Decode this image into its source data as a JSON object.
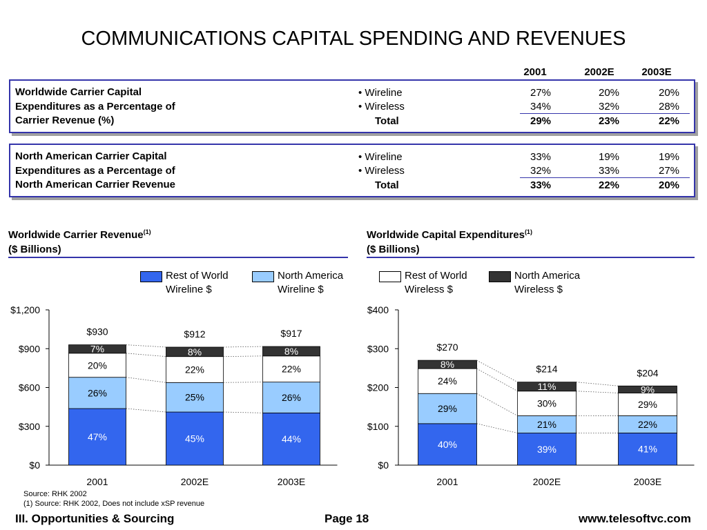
{
  "title": "COMMUNICATIONS CAPITAL SPENDING AND REVENUES",
  "years": [
    "2001",
    "2002E",
    "2003E"
  ],
  "panels": [
    {
      "label_lines": [
        "Worldwide Carrier Capital",
        "Expenditures as a Percentage of",
        "Carrier Revenue (%)"
      ],
      "rows": [
        {
          "label": "• Wireline",
          "values": [
            "27%",
            "20%",
            "20%"
          ]
        },
        {
          "label": "• Wireless",
          "values": [
            "34%",
            "32%",
            "28%"
          ]
        },
        {
          "label": "Total",
          "values": [
            "29%",
            "23%",
            "22%"
          ]
        }
      ]
    },
    {
      "label_lines": [
        "North American Carrier Capital",
        "Expenditures as a Percentage of",
        "North American Carrier Revenue"
      ],
      "rows": [
        {
          "label": "• Wireline",
          "values": [
            "33%",
            "19%",
            "19%"
          ]
        },
        {
          "label": "• Wireless",
          "values": [
            "32%",
            "33%",
            "27%"
          ]
        },
        {
          "label": "Total",
          "values": [
            "33%",
            "22%",
            "20%"
          ]
        }
      ]
    }
  ],
  "colors": {
    "rest_wireline": "#3366ee",
    "na_wireline": "#99ccff",
    "rest_wireless": "#ffffff",
    "na_wireless": "#333333",
    "panel_border": "#3333aa"
  },
  "legend": {
    "left": [
      {
        "line1": "Rest of World",
        "line2": "Wireline $",
        "color": "#3366ee"
      },
      {
        "line1": "North America",
        "line2": "Wireline $",
        "color": "#99ccff"
      }
    ],
    "right": [
      {
        "line1": "Rest of World",
        "line2": "Wireless $",
        "color": "#ffffff"
      },
      {
        "line1": "North America",
        "line2": "Wireless $",
        "color": "#333333"
      }
    ]
  },
  "chart_data": [
    {
      "type": "bar",
      "stacked": true,
      "title": "Worldwide Carrier Revenue",
      "title_sup": "(1)",
      "subtitle": "($ Billions)",
      "categories": [
        "2001",
        "2002E",
        "2003E"
      ],
      "totals": [
        930,
        912,
        917
      ],
      "total_labels": [
        "$930",
        "$912",
        "$917"
      ],
      "series": [
        {
          "name": "Rest of World Wireline $",
          "shares": [
            47,
            45,
            44
          ],
          "labels": [
            "47%",
            "45%",
            "44%"
          ],
          "color": "#3366ee",
          "text_color": "#ffffff"
        },
        {
          "name": "North America Wireline $",
          "shares": [
            26,
            25,
            26
          ],
          "labels": [
            "26%",
            "25%",
            "26%"
          ],
          "color": "#99ccff",
          "text_color": "#000000"
        },
        {
          "name": "Rest of World Wireless $",
          "shares": [
            20,
            22,
            22
          ],
          "labels": [
            "20%",
            "22%",
            "22%"
          ],
          "color": "#ffffff",
          "text_color": "#000000"
        },
        {
          "name": "North America Wireless $",
          "shares": [
            7,
            8,
            8
          ],
          "labels": [
            "7%",
            "8%",
            "8%"
          ],
          "color": "#333333",
          "text_color": "#ffffff"
        }
      ],
      "ylim": [
        0,
        1200
      ],
      "yticks": [
        0,
        300,
        600,
        900,
        1200
      ],
      "ytick_labels": [
        "$0",
        "$300",
        "$600",
        "$900",
        "$1,200"
      ]
    },
    {
      "type": "bar",
      "stacked": true,
      "title": "Worldwide Capital Expenditures",
      "title_sup": "(1)",
      "subtitle": "($ Billions)",
      "categories": [
        "2001",
        "2002E",
        "2003E"
      ],
      "totals": [
        270,
        214,
        204
      ],
      "total_labels": [
        "$270",
        "$214",
        "$204"
      ],
      "series": [
        {
          "name": "Rest of World Wireline $",
          "shares": [
            40,
            39,
            41
          ],
          "labels": [
            "40%",
            "39%",
            "41%"
          ],
          "color": "#3366ee",
          "text_color": "#ffffff"
        },
        {
          "name": "North America Wireline $",
          "shares": [
            29,
            21,
            22
          ],
          "labels": [
            "29%",
            "21%",
            "22%"
          ],
          "color": "#99ccff",
          "text_color": "#000000"
        },
        {
          "name": "Rest of World Wireless $",
          "shares": [
            24,
            30,
            29
          ],
          "labels": [
            "24%",
            "30%",
            "29%"
          ],
          "color": "#ffffff",
          "text_color": "#000000"
        },
        {
          "name": "North America Wireless $",
          "shares": [
            8,
            11,
            9
          ],
          "labels": [
            "8%",
            "11%",
            "9%"
          ],
          "color": "#333333",
          "text_color": "#ffffff"
        }
      ],
      "ylim": [
        0,
        400
      ],
      "yticks": [
        0,
        100,
        200,
        300,
        400
      ],
      "ytick_labels": [
        "$0",
        "$100",
        "$200",
        "$300",
        "$400"
      ]
    }
  ],
  "footnotes": {
    "source": "Source:  RHK 2002",
    "note1": "(1)  Source: RHK 2002, Does not include xSP revenue"
  },
  "footer": {
    "left": "III. Opportunities & Sourcing",
    "center": "Page 18",
    "right": "www.telesoftvc.com"
  }
}
